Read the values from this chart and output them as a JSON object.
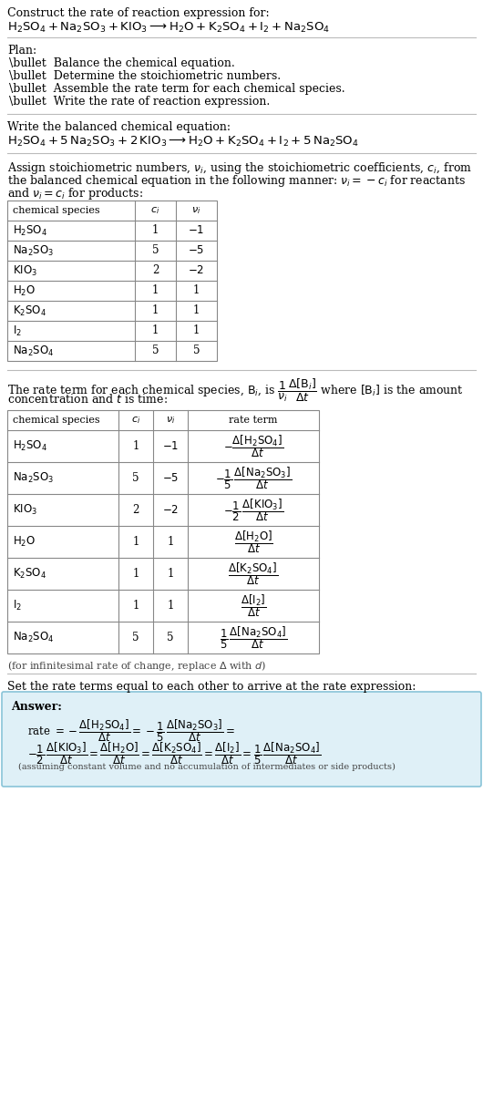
{
  "bg_color": "#ffffff",
  "text_color": "#000000",
  "table_border_color": "#888888",
  "answer_box_color": "#dff0f7",
  "answer_box_border": "#89c4d8",
  "font_size": 9.0,
  "title": "Construct the rate of reaction expression for:",
  "reaction_unbalanced_latex": "$\\mathrm{H_2SO_4 + Na_2SO_3 + KIO_3 \\longrightarrow H_2O + K_2SO_4 + I_2 + Na_2SO_4}$",
  "plan_header": "Plan:",
  "plan_items": [
    "\\bullet  Balance the chemical equation.",
    "\\bullet  Determine the stoichiometric numbers.",
    "\\bullet  Assemble the rate term for each chemical species.",
    "\\bullet  Write the rate of reaction expression."
  ],
  "balanced_header": "Write the balanced chemical equation:",
  "reaction_balanced_latex": "$\\mathrm{H_2SO_4 + 5\\,Na_2SO_3 + 2\\,KIO_3 \\longrightarrow H_2O + K_2SO_4 + I_2 + 5\\,Na_2SO_4}$",
  "assign_para": [
    "Assign stoichiometric numbers, $\\nu_i$, using the stoichiometric coefficients, $c_i$, from",
    "the balanced chemical equation in the following manner: $\\nu_i = -c_i$ for reactants",
    "and $\\nu_i = c_i$ for products:"
  ],
  "table1_rows": [
    [
      "$\\mathrm{H_2SO_4}$",
      "1",
      "$-1$"
    ],
    [
      "$\\mathrm{Na_2SO_3}$",
      "5",
      "$-5$"
    ],
    [
      "$\\mathrm{KIO_3}$",
      "2",
      "$-2$"
    ],
    [
      "$\\mathrm{H_2O}$",
      "1",
      "1"
    ],
    [
      "$\\mathrm{K_2SO_4}$",
      "1",
      "1"
    ],
    [
      "$\\mathrm{I_2}$",
      "1",
      "1"
    ],
    [
      "$\\mathrm{Na_2SO_4}$",
      "5",
      "5"
    ]
  ],
  "rate_para": [
    "The rate term for each chemical species, $\\mathrm{B}_i$, is $\\dfrac{1}{\\nu_i}\\dfrac{\\Delta[\\mathrm{B}_i]}{\\Delta t}$ where $[\\mathrm{B}_i]$ is the amount",
    "concentration and $t$ is time:"
  ],
  "table2_rows": [
    [
      "$\\mathrm{H_2SO_4}$",
      "1",
      "$-1$",
      "$-\\dfrac{\\Delta[\\mathrm{H_2SO_4}]}{\\Delta t}$"
    ],
    [
      "$\\mathrm{Na_2SO_3}$",
      "5",
      "$-5$",
      "$-\\dfrac{1}{5}\\,\\dfrac{\\Delta[\\mathrm{Na_2SO_3}]}{\\Delta t}$"
    ],
    [
      "$\\mathrm{KIO_3}$",
      "2",
      "$-2$",
      "$-\\dfrac{1}{2}\\,\\dfrac{\\Delta[\\mathrm{KIO_3}]}{\\Delta t}$"
    ],
    [
      "$\\mathrm{H_2O}$",
      "1",
      "1",
      "$\\dfrac{\\Delta[\\mathrm{H_2O}]}{\\Delta t}$"
    ],
    [
      "$\\mathrm{K_2SO_4}$",
      "1",
      "1",
      "$\\dfrac{\\Delta[\\mathrm{K_2SO_4}]}{\\Delta t}$"
    ],
    [
      "$\\mathrm{I_2}$",
      "1",
      "1",
      "$\\dfrac{\\Delta[\\mathrm{I_2}]}{\\Delta t}$"
    ],
    [
      "$\\mathrm{Na_2SO_4}$",
      "5",
      "5",
      "$\\dfrac{1}{5}\\,\\dfrac{\\Delta[\\mathrm{Na_2SO_4}]}{\\Delta t}$"
    ]
  ],
  "infinitesimal_note": "(for infinitesimal rate of change, replace $\\Delta$ with $d$)",
  "set_rate_text": "Set the rate terms equal to each other to arrive at the rate expression:",
  "answer_label": "Answer:",
  "answer_line1": "rate $= -\\dfrac{\\Delta[\\mathrm{H_2SO_4}]}{\\Delta t} = -\\dfrac{1}{5}\\,\\dfrac{\\Delta[\\mathrm{Na_2SO_3}]}{\\Delta t} =$",
  "answer_line2": "$-\\dfrac{1}{2}\\,\\dfrac{\\Delta[\\mathrm{KIO_3}]}{\\Delta t} = \\dfrac{\\Delta[\\mathrm{H_2O}]}{\\Delta t} = \\dfrac{\\Delta[\\mathrm{K_2SO_4}]}{\\Delta t} = \\dfrac{\\Delta[\\mathrm{I_2}]}{\\Delta t} = \\dfrac{1}{5}\\,\\dfrac{\\Delta[\\mathrm{Na_2SO_4}]}{\\Delta t}$",
  "answer_note": "(assuming constant volume and no accumulation of intermediates or side products)"
}
